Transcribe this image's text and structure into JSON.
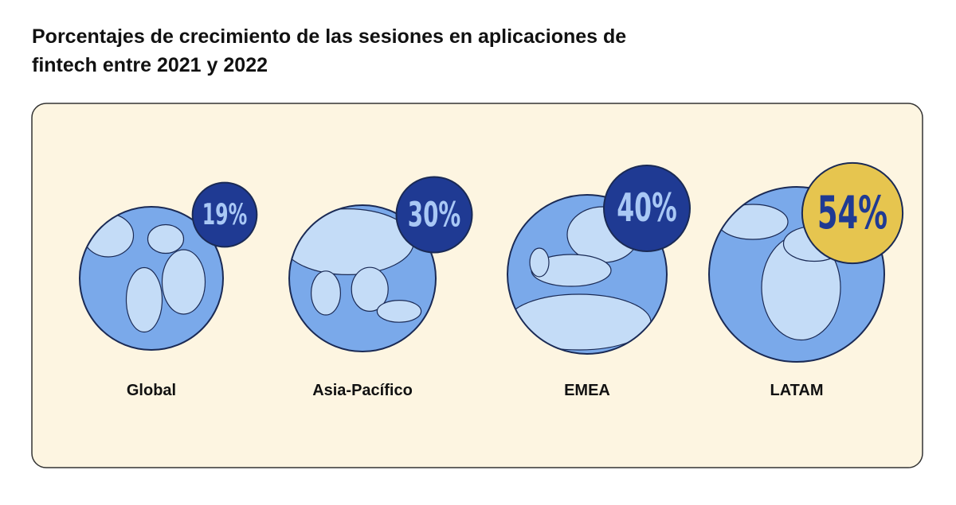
{
  "chart_data": {
    "type": "badge",
    "title": "Porcentajes de crecimiento de las sesiones en aplicaciones de fintech entre 2021 y 2022",
    "categories": [
      "Global",
      "Asia-Pacífico",
      "EMEA",
      "LATAM"
    ],
    "values": [
      19,
      30,
      40,
      54
    ],
    "value_labels": [
      "19%",
      "30%",
      "40%",
      "54%"
    ],
    "colors": [
      "#1f3a93",
      "#1f3a93",
      "#1f3a93",
      "#e6c54f"
    ]
  }
}
